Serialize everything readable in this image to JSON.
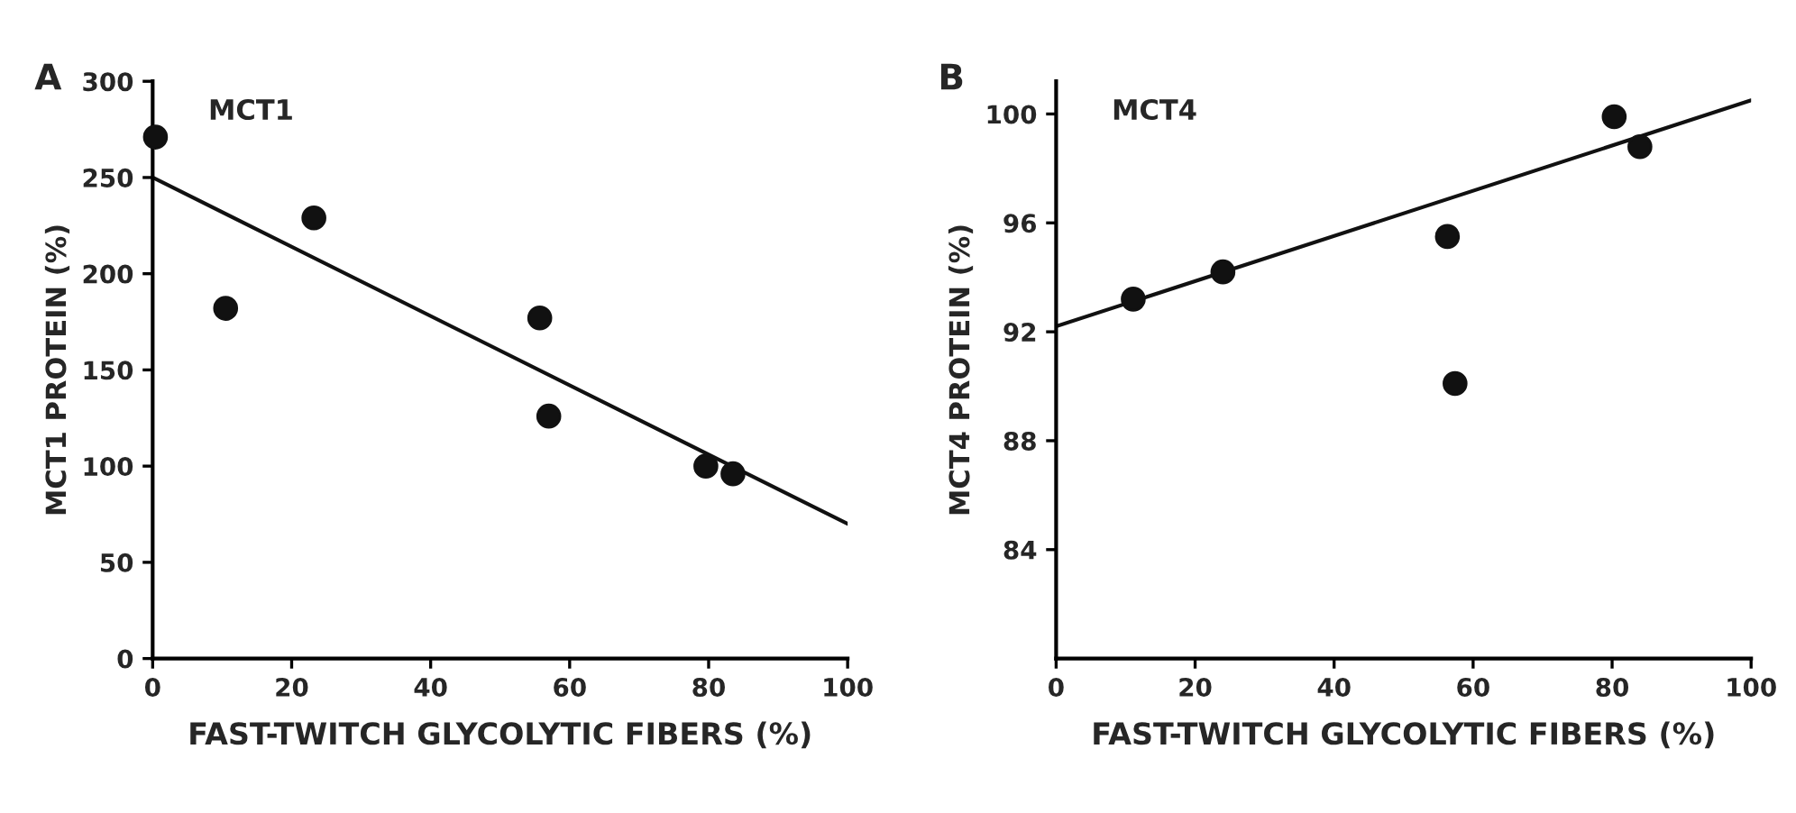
{
  "chart_data": [
    {
      "type": "scatter",
      "title": "A",
      "annotations": [
        "MCT1"
      ],
      "xlabel": "FAST-TWITCH GLYCOLYTIC FIBERS (%)",
      "ylabel": "MCT1 PROTEIN (%)",
      "xlim": [
        0,
        100
      ],
      "ylim": [
        0,
        300
      ],
      "xticks": [
        0,
        20,
        40,
        60,
        80,
        100
      ],
      "yticks": [
        0,
        50,
        100,
        150,
        200,
        250,
        300
      ],
      "grid": false,
      "legend": false,
      "marker": "circle",
      "series": [
        {
          "color": "#111111",
          "x": [
            0.4,
            10.5,
            23.2,
            55.7,
            57,
            79.6,
            83.5
          ],
          "values": [
            271,
            182,
            229,
            177,
            126,
            100,
            96
          ]
        },
        {
          "type": "line",
          "color": "#111111",
          "x": [
            0,
            100
          ],
          "values": [
            250,
            70
          ],
          "line_style": "solid",
          "marker": "none"
        }
      ]
    },
    {
      "type": "scatter",
      "title": "B",
      "annotations": [
        "MCT4"
      ],
      "xlabel": "FAST-TWITCH GLYCOLYTIC FIBERS (%)",
      "ylabel": "MCT4 PROTEIN (%)",
      "xlim": [
        0,
        100
      ],
      "ylim": [
        80,
        101.2
      ],
      "xticks": [
        0,
        20,
        40,
        60,
        80,
        100
      ],
      "yticks": [
        84,
        88,
        92,
        96,
        100
      ],
      "grid": false,
      "legend": false,
      "marker": "circle",
      "series": [
        {
          "color": "#111111",
          "x": [
            11.1,
            24,
            56.3,
            57.4,
            80.3,
            84
          ],
          "values": [
            93.2,
            94.2,
            95.5,
            90.1,
            99.9,
            98.8
          ]
        },
        {
          "type": "line",
          "color": "#111111",
          "x": [
            0,
            100
          ],
          "values": [
            92.2,
            100.5
          ],
          "line_style": "solid",
          "marker": "none"
        }
      ]
    }
  ]
}
